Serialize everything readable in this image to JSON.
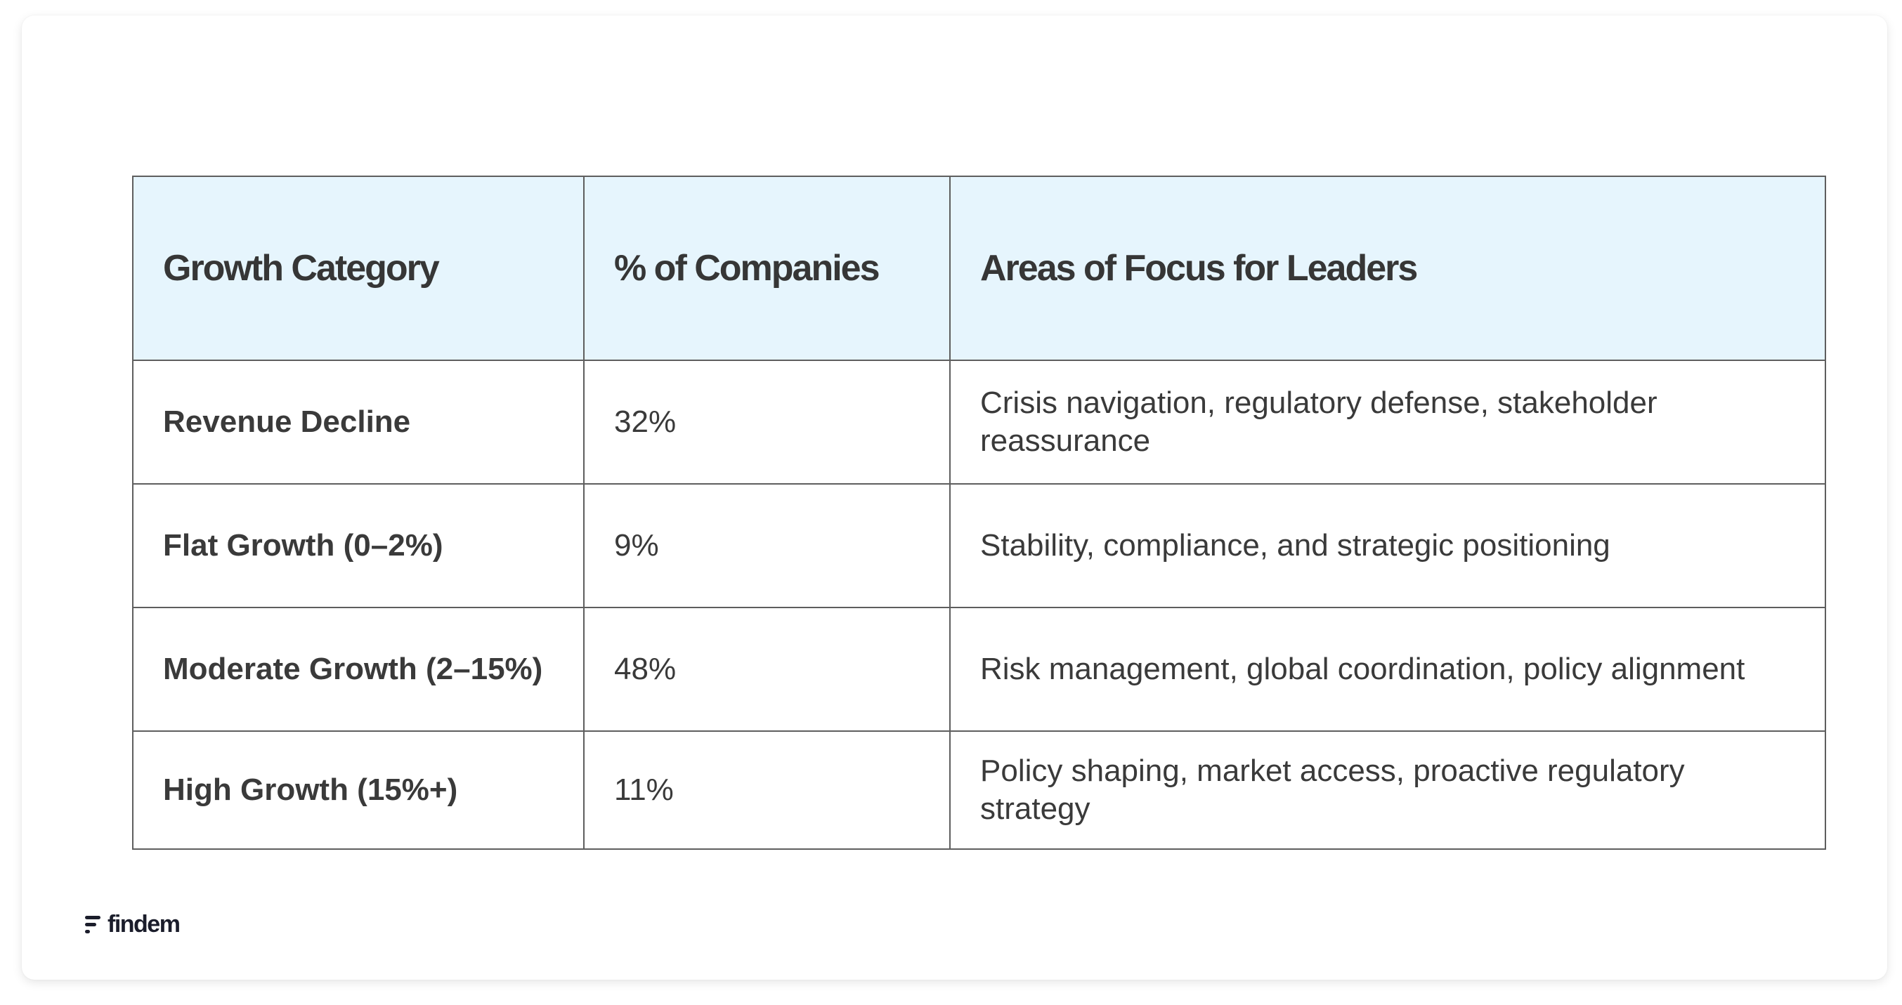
{
  "table": {
    "headers": [
      "Growth Category",
      "% of Companies",
      "Areas of Focus for  Leaders"
    ],
    "rows": [
      {
        "category": "Revenue Decline",
        "percent": "32%",
        "focus": "Crisis navigation, regulatory defense, stakeholder reassurance"
      },
      {
        "category": "Flat Growth (0–2%)",
        "percent": "9%",
        "focus": "Stability, compliance, and strategic positioning"
      },
      {
        "category": "Moderate Growth (2–15%)",
        "percent": "48%",
        "focus": "Risk management, global coordination, policy alignment"
      },
      {
        "category": "High Growth (15%+)",
        "percent": "11%",
        "focus": "Policy shaping, market access, proactive regulatory strategy"
      }
    ]
  },
  "brand": {
    "name": "findem",
    "icon": "findem-logo-mark"
  },
  "colors": {
    "header_bg": "#e6f5fd",
    "border": "#5e5e5e",
    "text": "#3a3a3a",
    "logo": "#1b1d2b"
  }
}
